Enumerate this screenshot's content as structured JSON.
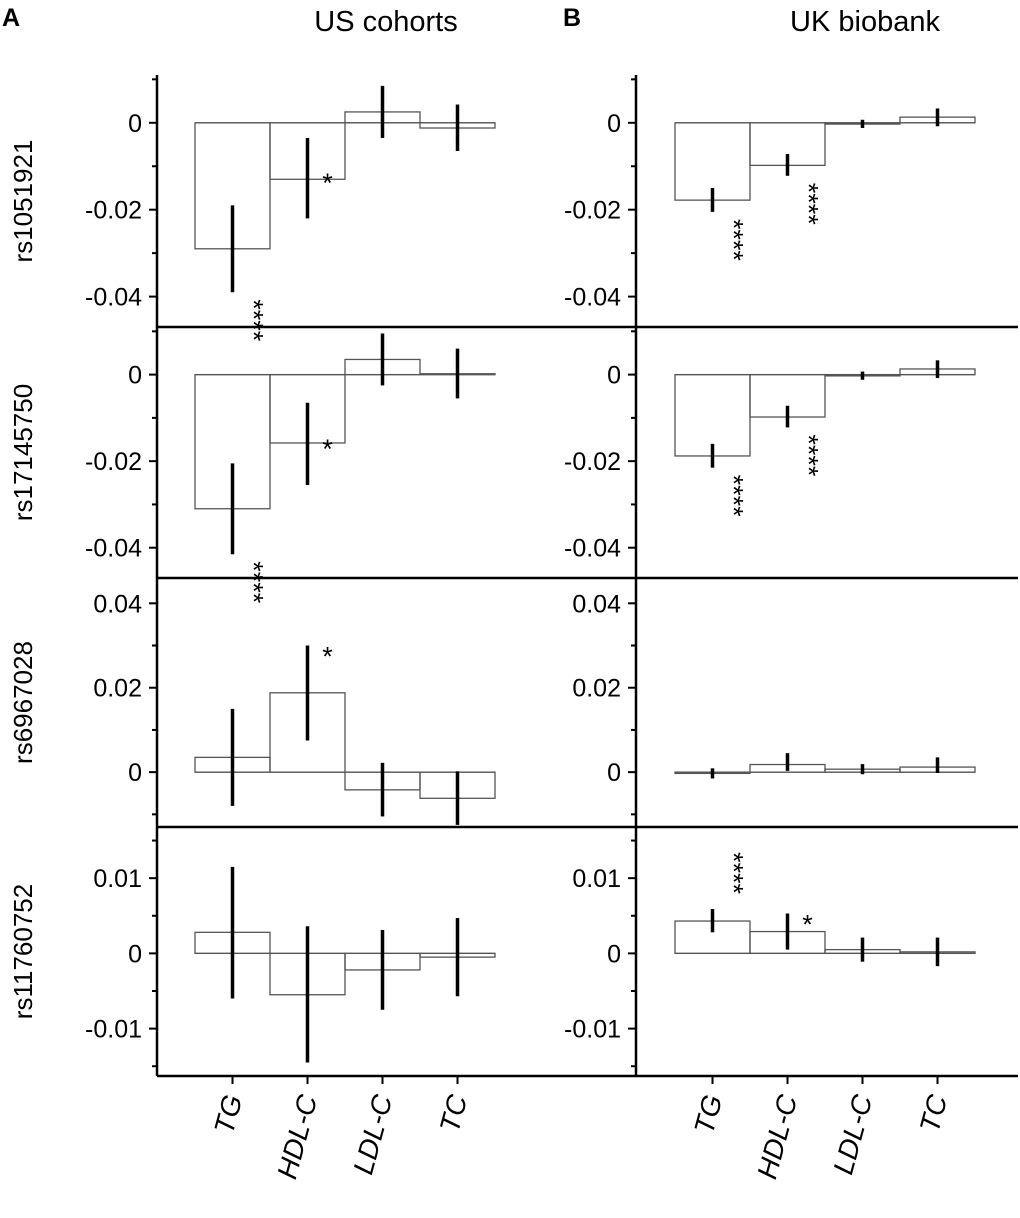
{
  "figure": {
    "panels": [
      {
        "letter": "A",
        "title": "US cohorts"
      },
      {
        "letter": "B",
        "title": "UK biobank"
      }
    ]
  },
  "chart_data": {
    "type": "bar",
    "categories": [
      "TG",
      "HDL-C",
      "LDL-C",
      "TC"
    ],
    "rows": [
      {
        "snp": "rs1051921",
        "ylim": [
          -0.047,
          0.011
        ],
        "ticks": [
          0,
          -0.02,
          -0.04
        ],
        "tick_labels": [
          "0",
          "-0.02",
          "-0.04"
        ],
        "panels": [
          {
            "name": "US cohorts",
            "values": [
              -0.029,
              -0.013,
              0.0025,
              -0.0012
            ],
            "err_low": [
              -0.039,
              -0.022,
              -0.0035,
              -0.0065
            ],
            "err_high": [
              -0.019,
              -0.0035,
              0.0085,
              0.0042
            ],
            "sig": [
              "****",
              "*",
              "",
              ""
            ]
          },
          {
            "name": "UK biobank",
            "values": [
              -0.0178,
              -0.0098,
              -0.0003,
              0.0013
            ],
            "err_low": [
              -0.0205,
              -0.0122,
              -0.0012,
              -0.0008
            ],
            "err_high": [
              -0.015,
              -0.0072,
              0.0007,
              0.0033
            ],
            "sig": [
              "****",
              "****",
              "",
              ""
            ]
          }
        ]
      },
      {
        "snp": "rs17145750",
        "ylim": [
          -0.047,
          0.011
        ],
        "ticks": [
          0,
          -0.02,
          -0.04
        ],
        "tick_labels": [
          "0",
          "-0.02",
          "-0.04"
        ],
        "panels": [
          {
            "name": "US cohorts",
            "values": [
              -0.031,
              -0.0158,
              0.0035,
              0.0002
            ],
            "err_low": [
              -0.0415,
              -0.0255,
              -0.0025,
              -0.0055
            ],
            "err_high": [
              -0.0205,
              -0.0065,
              0.0095,
              0.006
            ],
            "sig": [
              "****",
              "*",
              "",
              ""
            ]
          },
          {
            "name": "UK biobank",
            "values": [
              -0.0188,
              -0.0098,
              -0.0003,
              0.0013
            ],
            "err_low": [
              -0.0215,
              -0.0122,
              -0.0012,
              -0.0008
            ],
            "err_high": [
              -0.016,
              -0.0072,
              0.0007,
              0.0033
            ],
            "sig": [
              "****",
              "****",
              "",
              ""
            ]
          }
        ]
      },
      {
        "snp": "rs6967028",
        "ylim": [
          -0.013,
          0.046
        ],
        "ticks": [
          0.04,
          0.02,
          0
        ],
        "tick_labels": [
          "0.04",
          "0.02",
          "0"
        ],
        "panels": [
          {
            "name": "US cohorts",
            "values": [
              0.0035,
              0.0188,
              -0.0042,
              -0.0062
            ],
            "err_low": [
              -0.008,
              0.0075,
              -0.0105,
              -0.0125
            ],
            "err_high": [
              0.015,
              0.03,
              0.0022,
              0.0002
            ],
            "sig": [
              "",
              "*",
              "",
              ""
            ]
          },
          {
            "name": "UK biobank",
            "values": [
              -0.0003,
              0.0018,
              0.0007,
              0.0012
            ],
            "err_low": [
              -0.0015,
              0.0003,
              -0.0005,
              -0.0002
            ],
            "err_high": [
              0.0009,
              0.0045,
              0.0019,
              0.0035
            ],
            "sig": [
              "",
              "",
              "",
              ""
            ]
          }
        ]
      },
      {
        "snp": "rs11760752",
        "ylim": [
          -0.0163,
          0.0168
        ],
        "ticks": [
          0.01,
          0,
          -0.01
        ],
        "tick_labels": [
          "0.01",
          "0",
          "-0.01"
        ],
        "panels": [
          {
            "name": "US cohorts",
            "values": [
              0.0028,
              -0.0055,
              -0.0022,
              -0.0005
            ],
            "err_low": [
              -0.006,
              -0.0145,
              -0.0075,
              -0.0057
            ],
            "err_high": [
              0.0115,
              0.0036,
              0.0031,
              0.0047
            ],
            "sig": [
              "",
              "",
              "",
              ""
            ]
          },
          {
            "name": "UK biobank",
            "values": [
              0.0043,
              0.0029,
              0.0005,
              0.0002
            ],
            "err_low": [
              0.0028,
              0.0005,
              -0.0011,
              -0.0017
            ],
            "err_high": [
              0.0059,
              0.0053,
              0.0021,
              0.0021
            ],
            "sig": [
              "****",
              "*",
              "",
              ""
            ]
          }
        ]
      }
    ]
  }
}
